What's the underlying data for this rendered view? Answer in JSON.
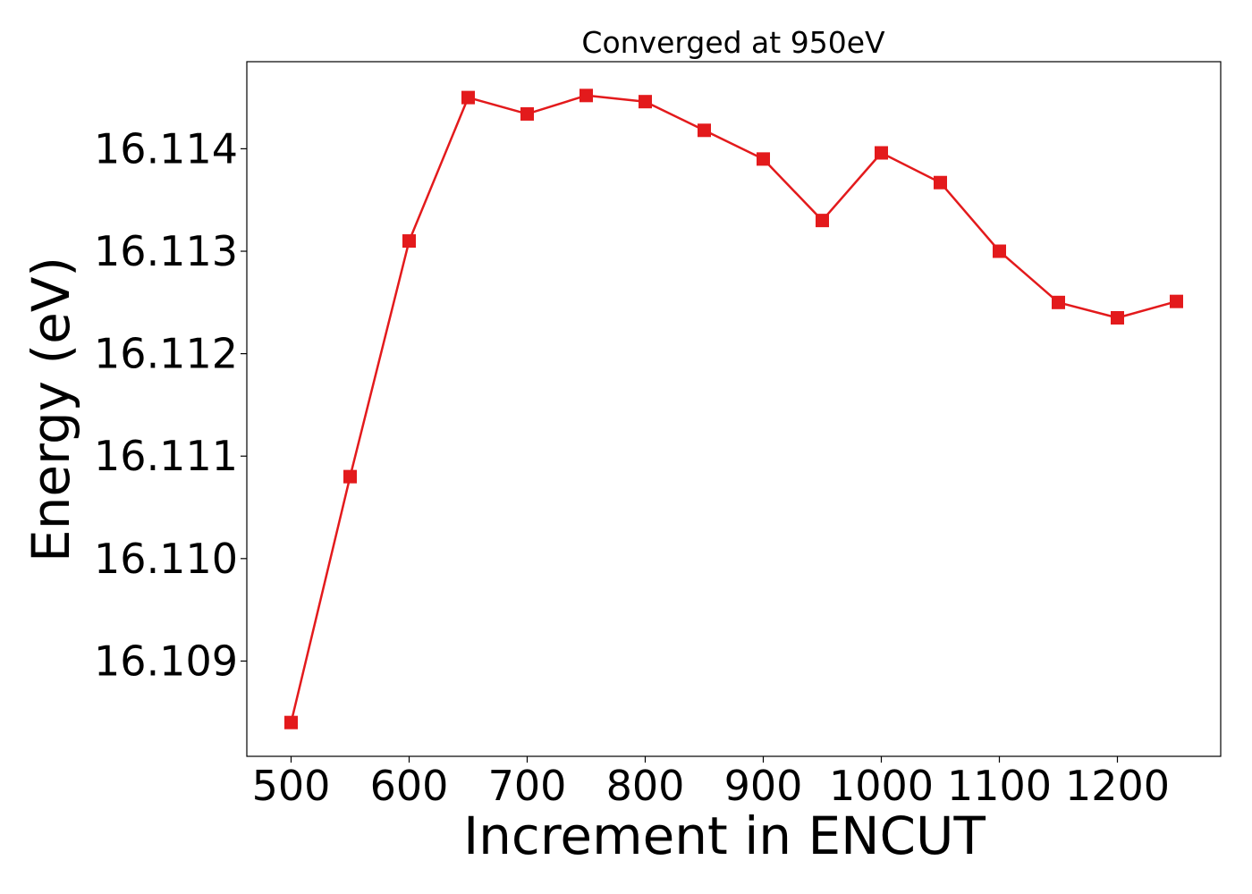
{
  "chart_data": {
    "type": "line",
    "title": "Converged at 950eV",
    "xlabel": "Increment in ENCUT",
    "ylabel": "Energy (eV)",
    "x": [
      500,
      550,
      600,
      650,
      700,
      750,
      800,
      850,
      900,
      950,
      1000,
      1050,
      1100,
      1150,
      1200,
      1250
    ],
    "series": [
      {
        "values": [
          16.1084,
          16.1108,
          16.1131,
          16.1145,
          16.11434,
          16.11452,
          16.11446,
          16.11418,
          16.1139,
          16.1133,
          16.11396,
          16.11367,
          16.113,
          16.1125,
          16.11235,
          16.11251
        ],
        "color": "#e31a1c",
        "marker": "square"
      }
    ],
    "xticks": [
      500,
      600,
      700,
      800,
      900,
      1000,
      1100,
      1200
    ],
    "xtick_labels": [
      "500",
      "600",
      "700",
      "800",
      "900",
      "1000",
      "1100",
      "1200"
    ],
    "yticks": [
      16.109,
      16.11,
      16.111,
      16.112,
      16.113,
      16.114
    ],
    "ytick_labels": [
      "16.109",
      "16.110",
      "16.111",
      "16.112",
      "16.113",
      "16.114"
    ],
    "xlim": [
      462.5,
      1287.5
    ],
    "ylim": [
      16.10807,
      16.11485
    ],
    "grid": false,
    "legend": "none"
  }
}
